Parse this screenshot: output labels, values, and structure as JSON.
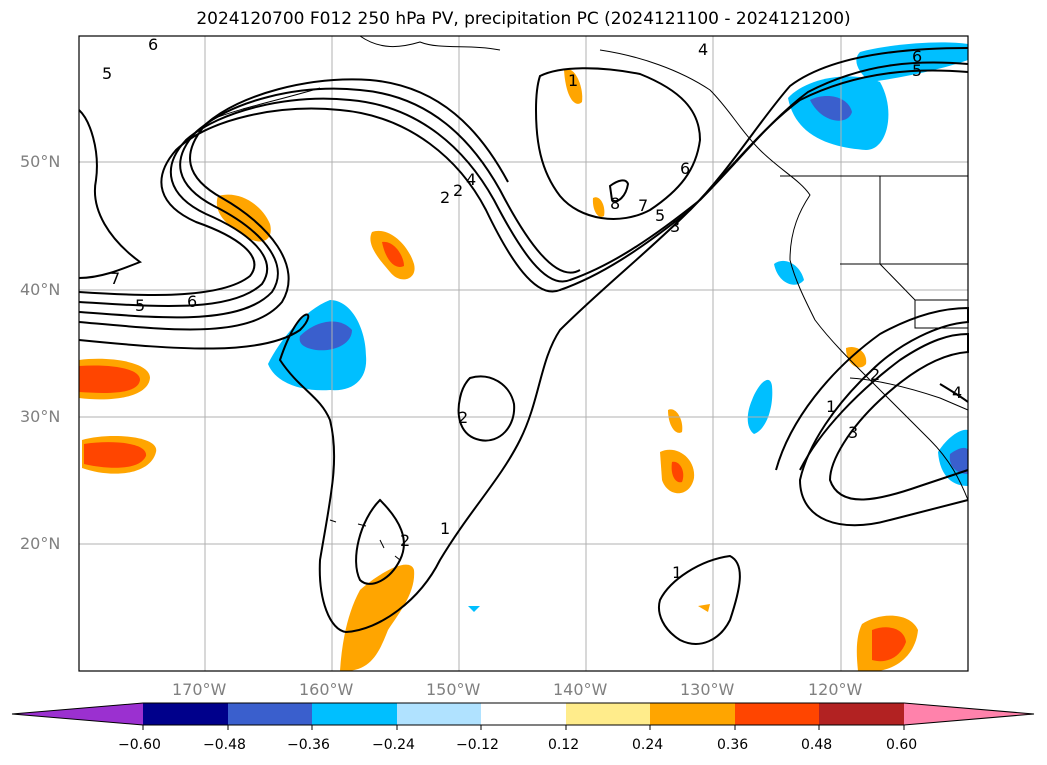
{
  "title": "2024120700 F012 250 hPa PV, precipitation PC (2024121100 - 2024121200)",
  "map": {
    "lat_labels": [
      "50°N",
      "40°N",
      "30°N",
      "20°N"
    ],
    "lon_labels": [
      "170°W",
      "160°W",
      "150°W",
      "140°W",
      "130°W",
      "120°W"
    ],
    "contour_labels": [
      "6",
      "5",
      "4",
      "2",
      "7",
      "5",
      "6",
      "4",
      "2",
      "6",
      "8",
      "7",
      "5",
      "3",
      "1",
      "6",
      "5",
      "2",
      "1",
      "2",
      "1",
      "2",
      "3",
      "1",
      "4"
    ]
  },
  "colorbar": {
    "tick_labels": [
      "−0.60",
      "−0.48",
      "−0.36",
      "−0.24",
      "−0.12",
      "0.12",
      "0.24",
      "0.36",
      "0.48",
      "0.60"
    ],
    "colors": [
      "#9b30d0",
      "#00008b",
      "#3a5fcd",
      "#00bfff",
      "#b0e2ff",
      "#ffffff",
      "#ffec8b",
      "#ffa500",
      "#ff4500",
      "#b22222",
      "#ff82ab"
    ]
  }
}
